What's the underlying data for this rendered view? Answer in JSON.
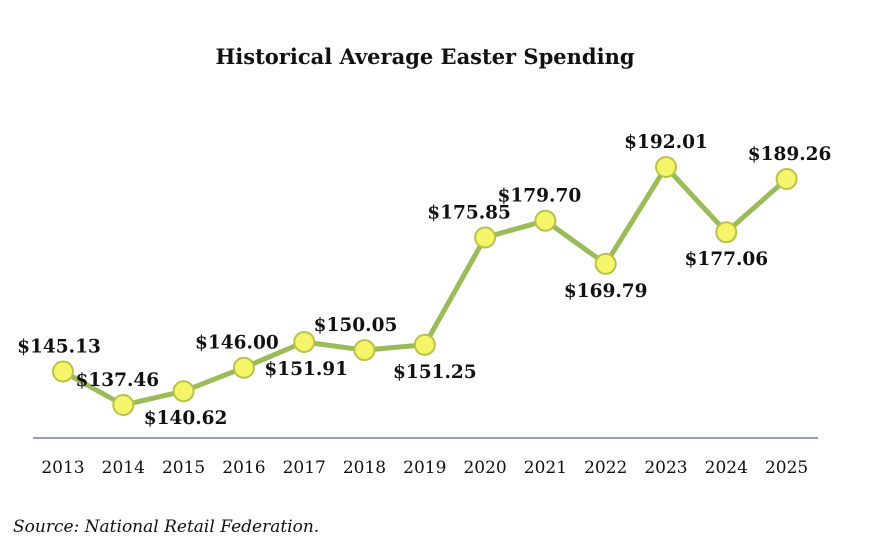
{
  "chart_data": {
    "type": "line",
    "title": "Historical Average Easter Spending",
    "xlabel": "",
    "ylabel": "",
    "categories": [
      "2013",
      "2014",
      "2015",
      "2016",
      "2017",
      "2018",
      "2019",
      "2020",
      "2021",
      "2022",
      "2023",
      "2024",
      "2025"
    ],
    "series": [
      {
        "values": [
          145.13,
          137.46,
          140.62,
          146.0,
          151.91,
          150.05,
          151.25,
          175.85,
          179.7,
          169.79,
          192.01,
          177.06,
          189.26
        ],
        "labels": [
          "$145.13",
          "$137.46",
          "$140.62",
          "$146.00",
          "$151.91",
          "$150.05",
          "$151.25",
          "$175.85",
          "$179.70",
          "$169.79",
          "$192.01",
          "$177.06",
          "$189.26"
        ]
      }
    ],
    "ylim": [
      130,
      200
    ],
    "grid": false,
    "legend": "none",
    "colors": {
      "line": "#9bbb59",
      "marker_fill": "#f5f56a",
      "marker_stroke": "#b9c14a",
      "axis": "#2a3a7a"
    },
    "source": "Source: National Retail Federation."
  }
}
